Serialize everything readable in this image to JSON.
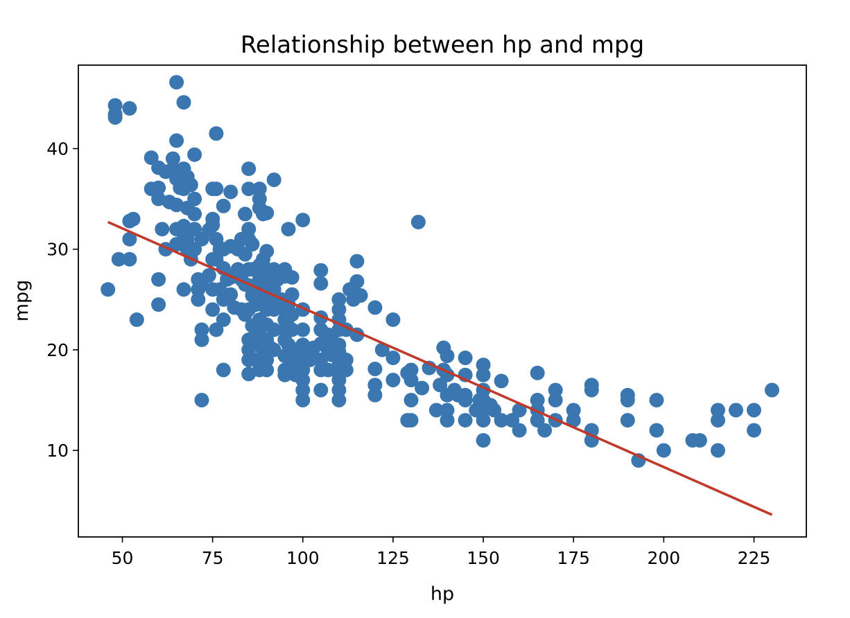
{
  "chart_data": {
    "type": "scatter",
    "title": "Relationship between hp and mpg",
    "xlabel": "hp",
    "ylabel": "mpg",
    "xlim": [
      37.8,
      239.5
    ],
    "ylim": [
      1.4,
      48.3
    ],
    "xticks": [
      50,
      75,
      100,
      125,
      150,
      175,
      200,
      225
    ],
    "yticks": [
      10,
      20,
      30,
      40
    ],
    "grid": false,
    "colors": {
      "points": "#3a76af",
      "fit_line": "#c0392b"
    },
    "points": [
      [
        46,
        26
      ],
      [
        48,
        43.1
      ],
      [
        48,
        44.3
      ],
      [
        48,
        43.4
      ],
      [
        49,
        29
      ],
      [
        52,
        29
      ],
      [
        52,
        31
      ],
      [
        52,
        44
      ],
      [
        52,
        32.8
      ],
      [
        53,
        33
      ],
      [
        54,
        23
      ],
      [
        58,
        39.1
      ],
      [
        58,
        36
      ],
      [
        60,
        36.1
      ],
      [
        60,
        27
      ],
      [
        60,
        24.5
      ],
      [
        60,
        35
      ],
      [
        60,
        38.1
      ],
      [
        61,
        32
      ],
      [
        62,
        37.7
      ],
      [
        62,
        30
      ],
      [
        63,
        34.7
      ],
      [
        64,
        38
      ],
      [
        64,
        39
      ],
      [
        65,
        46.6
      ],
      [
        65,
        40.8
      ],
      [
        65,
        37
      ],
      [
        65,
        34.4
      ],
      [
        65,
        32
      ],
      [
        65,
        30.5
      ],
      [
        66,
        36.1
      ],
      [
        67,
        44.6
      ],
      [
        67,
        38
      ],
      [
        67,
        36
      ],
      [
        67,
        32.3
      ],
      [
        67,
        31.5
      ],
      [
        67,
        26
      ],
      [
        68,
        37.2
      ],
      [
        68,
        34.1
      ],
      [
        68,
        31
      ],
      [
        68,
        30
      ],
      [
        69,
        36.4
      ],
      [
        69,
        29
      ],
      [
        70,
        39.4
      ],
      [
        70,
        35
      ],
      [
        70,
        33.5
      ],
      [
        70,
        32
      ],
      [
        70,
        30
      ],
      [
        71,
        26
      ],
      [
        71,
        27
      ],
      [
        71,
        25
      ],
      [
        72,
        31
      ],
      [
        72,
        26.5
      ],
      [
        72,
        22
      ],
      [
        72,
        21
      ],
      [
        72,
        15
      ],
      [
        74,
        31.9
      ],
      [
        74,
        27.4
      ],
      [
        75,
        36
      ],
      [
        75,
        33
      ],
      [
        75,
        29
      ],
      [
        75,
        26
      ],
      [
        75,
        24
      ],
      [
        75,
        32.4
      ],
      [
        76,
        41.5
      ],
      [
        76,
        36
      ],
      [
        76,
        31
      ],
      [
        76,
        29
      ],
      [
        76,
        22
      ],
      [
        77,
        30
      ],
      [
        77,
        26
      ],
      [
        78,
        34.3
      ],
      [
        78,
        30
      ],
      [
        78,
        28.1
      ],
      [
        78,
        25
      ],
      [
        78,
        23
      ],
      [
        78,
        18
      ],
      [
        79,
        27
      ],
      [
        80,
        35.7
      ],
      [
        80,
        30.3
      ],
      [
        80,
        27.2
      ],
      [
        80,
        25.5
      ],
      [
        81,
        24.2
      ],
      [
        82,
        30
      ],
      [
        82,
        28
      ],
      [
        83,
        31
      ],
      [
        83,
        27
      ],
      [
        83,
        24
      ],
      [
        84,
        33.5
      ],
      [
        84,
        29.5
      ],
      [
        84,
        26.5
      ],
      [
        84,
        23.5
      ],
      [
        85,
        38
      ],
      [
        85,
        36
      ],
      [
        85,
        32
      ],
      [
        85,
        31
      ],
      [
        85,
        28
      ],
      [
        85,
        26.4
      ],
      [
        85,
        24
      ],
      [
        85,
        21
      ],
      [
        85,
        20
      ],
      [
        85,
        19
      ],
      [
        85,
        17.6
      ],
      [
        86,
        30.5
      ],
      [
        86,
        28
      ],
      [
        86,
        25.4
      ],
      [
        86,
        22.4
      ],
      [
        87,
        28
      ],
      [
        87,
        24.5
      ],
      [
        87,
        22
      ],
      [
        87,
        21.6
      ],
      [
        87,
        19
      ],
      [
        88,
        36
      ],
      [
        88,
        35
      ],
      [
        88,
        34.1
      ],
      [
        88,
        28.4
      ],
      [
        88,
        27
      ],
      [
        88,
        26
      ],
      [
        88,
        25
      ],
      [
        88,
        23
      ],
      [
        88,
        22
      ],
      [
        88,
        21
      ],
      [
        88,
        20.5
      ],
      [
        88,
        19
      ],
      [
        88,
        18
      ],
      [
        89,
        33.5
      ],
      [
        89,
        29
      ],
      [
        89,
        22.5
      ],
      [
        89,
        20
      ],
      [
        90,
        33.6
      ],
      [
        90,
        29.8
      ],
      [
        90,
        28
      ],
      [
        90,
        27
      ],
      [
        90,
        26
      ],
      [
        90,
        25
      ],
      [
        90,
        24
      ],
      [
        90,
        22.5
      ],
      [
        90,
        21
      ],
      [
        90,
        20
      ],
      [
        90,
        19
      ],
      [
        90,
        18
      ],
      [
        91,
        25.4
      ],
      [
        91,
        20.2
      ],
      [
        92,
        36.9
      ],
      [
        92,
        28
      ],
      [
        92,
        26
      ],
      [
        92,
        24
      ],
      [
        92,
        22
      ],
      [
        92,
        20
      ],
      [
        93,
        27
      ],
      [
        93,
        24.3
      ],
      [
        94,
        25
      ],
      [
        95,
        28
      ],
      [
        95,
        27.3
      ],
      [
        95,
        24
      ],
      [
        95,
        23
      ],
      [
        95,
        22
      ],
      [
        95,
        21
      ],
      [
        95,
        19.4
      ],
      [
        95,
        18
      ],
      [
        95,
        17.5
      ],
      [
        96,
        32
      ],
      [
        96,
        24.5
      ],
      [
        96,
        22.3
      ],
      [
        96,
        20.5
      ],
      [
        96,
        18
      ],
      [
        97,
        27.2
      ],
      [
        97,
        25.5
      ],
      [
        97,
        23.5
      ],
      [
        97,
        22
      ],
      [
        97,
        19
      ],
      [
        97,
        18.6
      ],
      [
        98,
        20
      ],
      [
        98,
        17.5
      ],
      [
        100,
        32.9
      ],
      [
        100,
        24
      ],
      [
        100,
        22
      ],
      [
        100,
        20.5
      ],
      [
        100,
        19.2
      ],
      [
        100,
        18
      ],
      [
        100,
        17
      ],
      [
        100,
        16
      ],
      [
        100,
        15
      ],
      [
        102,
        20
      ],
      [
        102,
        19
      ],
      [
        103,
        20.2
      ],
      [
        105,
        27.9
      ],
      [
        105,
        26.6
      ],
      [
        105,
        23.2
      ],
      [
        105,
        22
      ],
      [
        105,
        20.6
      ],
      [
        105,
        19
      ],
      [
        105,
        18
      ],
      [
        105,
        16
      ],
      [
        107,
        21.5
      ],
      [
        107,
        20
      ],
      [
        107,
        18
      ],
      [
        108,
        21
      ],
      [
        108,
        19.5
      ],
      [
        110,
        25
      ],
      [
        110,
        24
      ],
      [
        110,
        23
      ],
      [
        110,
        22
      ],
      [
        110,
        20.5
      ],
      [
        110,
        19.8
      ],
      [
        110,
        18.5
      ],
      [
        110,
        17.6
      ],
      [
        110,
        17
      ],
      [
        110,
        16
      ],
      [
        110,
        15
      ],
      [
        112,
        22
      ],
      [
        112,
        19
      ],
      [
        112,
        18
      ],
      [
        113,
        26
      ],
      [
        114,
        25
      ],
      [
        115,
        28.8
      ],
      [
        115,
        26.8
      ],
      [
        115,
        25.5
      ],
      [
        115,
        21.5
      ],
      [
        116,
        25.4
      ],
      [
        120,
        24.2
      ],
      [
        120,
        18.1
      ],
      [
        120,
        16.5
      ],
      [
        120,
        15.5
      ],
      [
        122,
        20
      ],
      [
        125,
        23
      ],
      [
        125,
        19.2
      ],
      [
        125,
        17
      ],
      [
        129,
        17.7
      ],
      [
        129,
        13
      ],
      [
        130,
        18
      ],
      [
        130,
        17
      ],
      [
        130,
        15
      ],
      [
        130,
        13
      ],
      [
        132,
        32.7
      ],
      [
        133,
        16.2
      ],
      [
        135,
        18.2
      ],
      [
        137,
        14
      ],
      [
        138,
        16.5
      ],
      [
        139,
        20.2
      ],
      [
        139,
        18
      ],
      [
        140,
        19.4
      ],
      [
        140,
        17.5
      ],
      [
        140,
        15.5
      ],
      [
        140,
        14
      ],
      [
        140,
        13
      ],
      [
        142,
        16
      ],
      [
        143,
        15.5
      ],
      [
        145,
        19.2
      ],
      [
        145,
        17.5
      ],
      [
        145,
        15.5
      ],
      [
        145,
        15
      ],
      [
        145,
        13
      ],
      [
        148,
        14
      ],
      [
        149,
        15
      ],
      [
        150,
        18.5
      ],
      [
        150,
        17.5
      ],
      [
        150,
        16
      ],
      [
        150,
        15
      ],
      [
        150,
        14
      ],
      [
        150,
        13
      ],
      [
        150,
        11
      ],
      [
        152,
        14.5
      ],
      [
        153,
        14
      ],
      [
        155,
        16.9
      ],
      [
        155,
        13
      ],
      [
        158,
        13
      ],
      [
        160,
        14
      ],
      [
        160,
        12
      ],
      [
        165,
        17.7
      ],
      [
        165,
        15
      ],
      [
        165,
        14
      ],
      [
        165,
        13
      ],
      [
        167,
        12
      ],
      [
        170,
        16
      ],
      [
        170,
        15
      ],
      [
        170,
        13
      ],
      [
        175,
        14
      ],
      [
        175,
        13
      ],
      [
        180,
        16.5
      ],
      [
        180,
        16
      ],
      [
        180,
        12
      ],
      [
        180,
        11
      ],
      [
        190,
        15.5
      ],
      [
        190,
        15
      ],
      [
        190,
        13
      ],
      [
        193,
        9
      ],
      [
        198,
        15
      ],
      [
        198,
        12
      ],
      [
        200,
        10
      ],
      [
        208,
        11
      ],
      [
        210,
        11
      ],
      [
        215,
        14
      ],
      [
        215,
        13
      ],
      [
        215,
        10
      ],
      [
        220,
        14
      ],
      [
        225,
        14
      ],
      [
        225,
        12
      ],
      [
        230,
        16
      ]
    ],
    "fit_line": {
      "x": [
        46,
        230
      ],
      "y": [
        32.7,
        3.6
      ]
    }
  }
}
